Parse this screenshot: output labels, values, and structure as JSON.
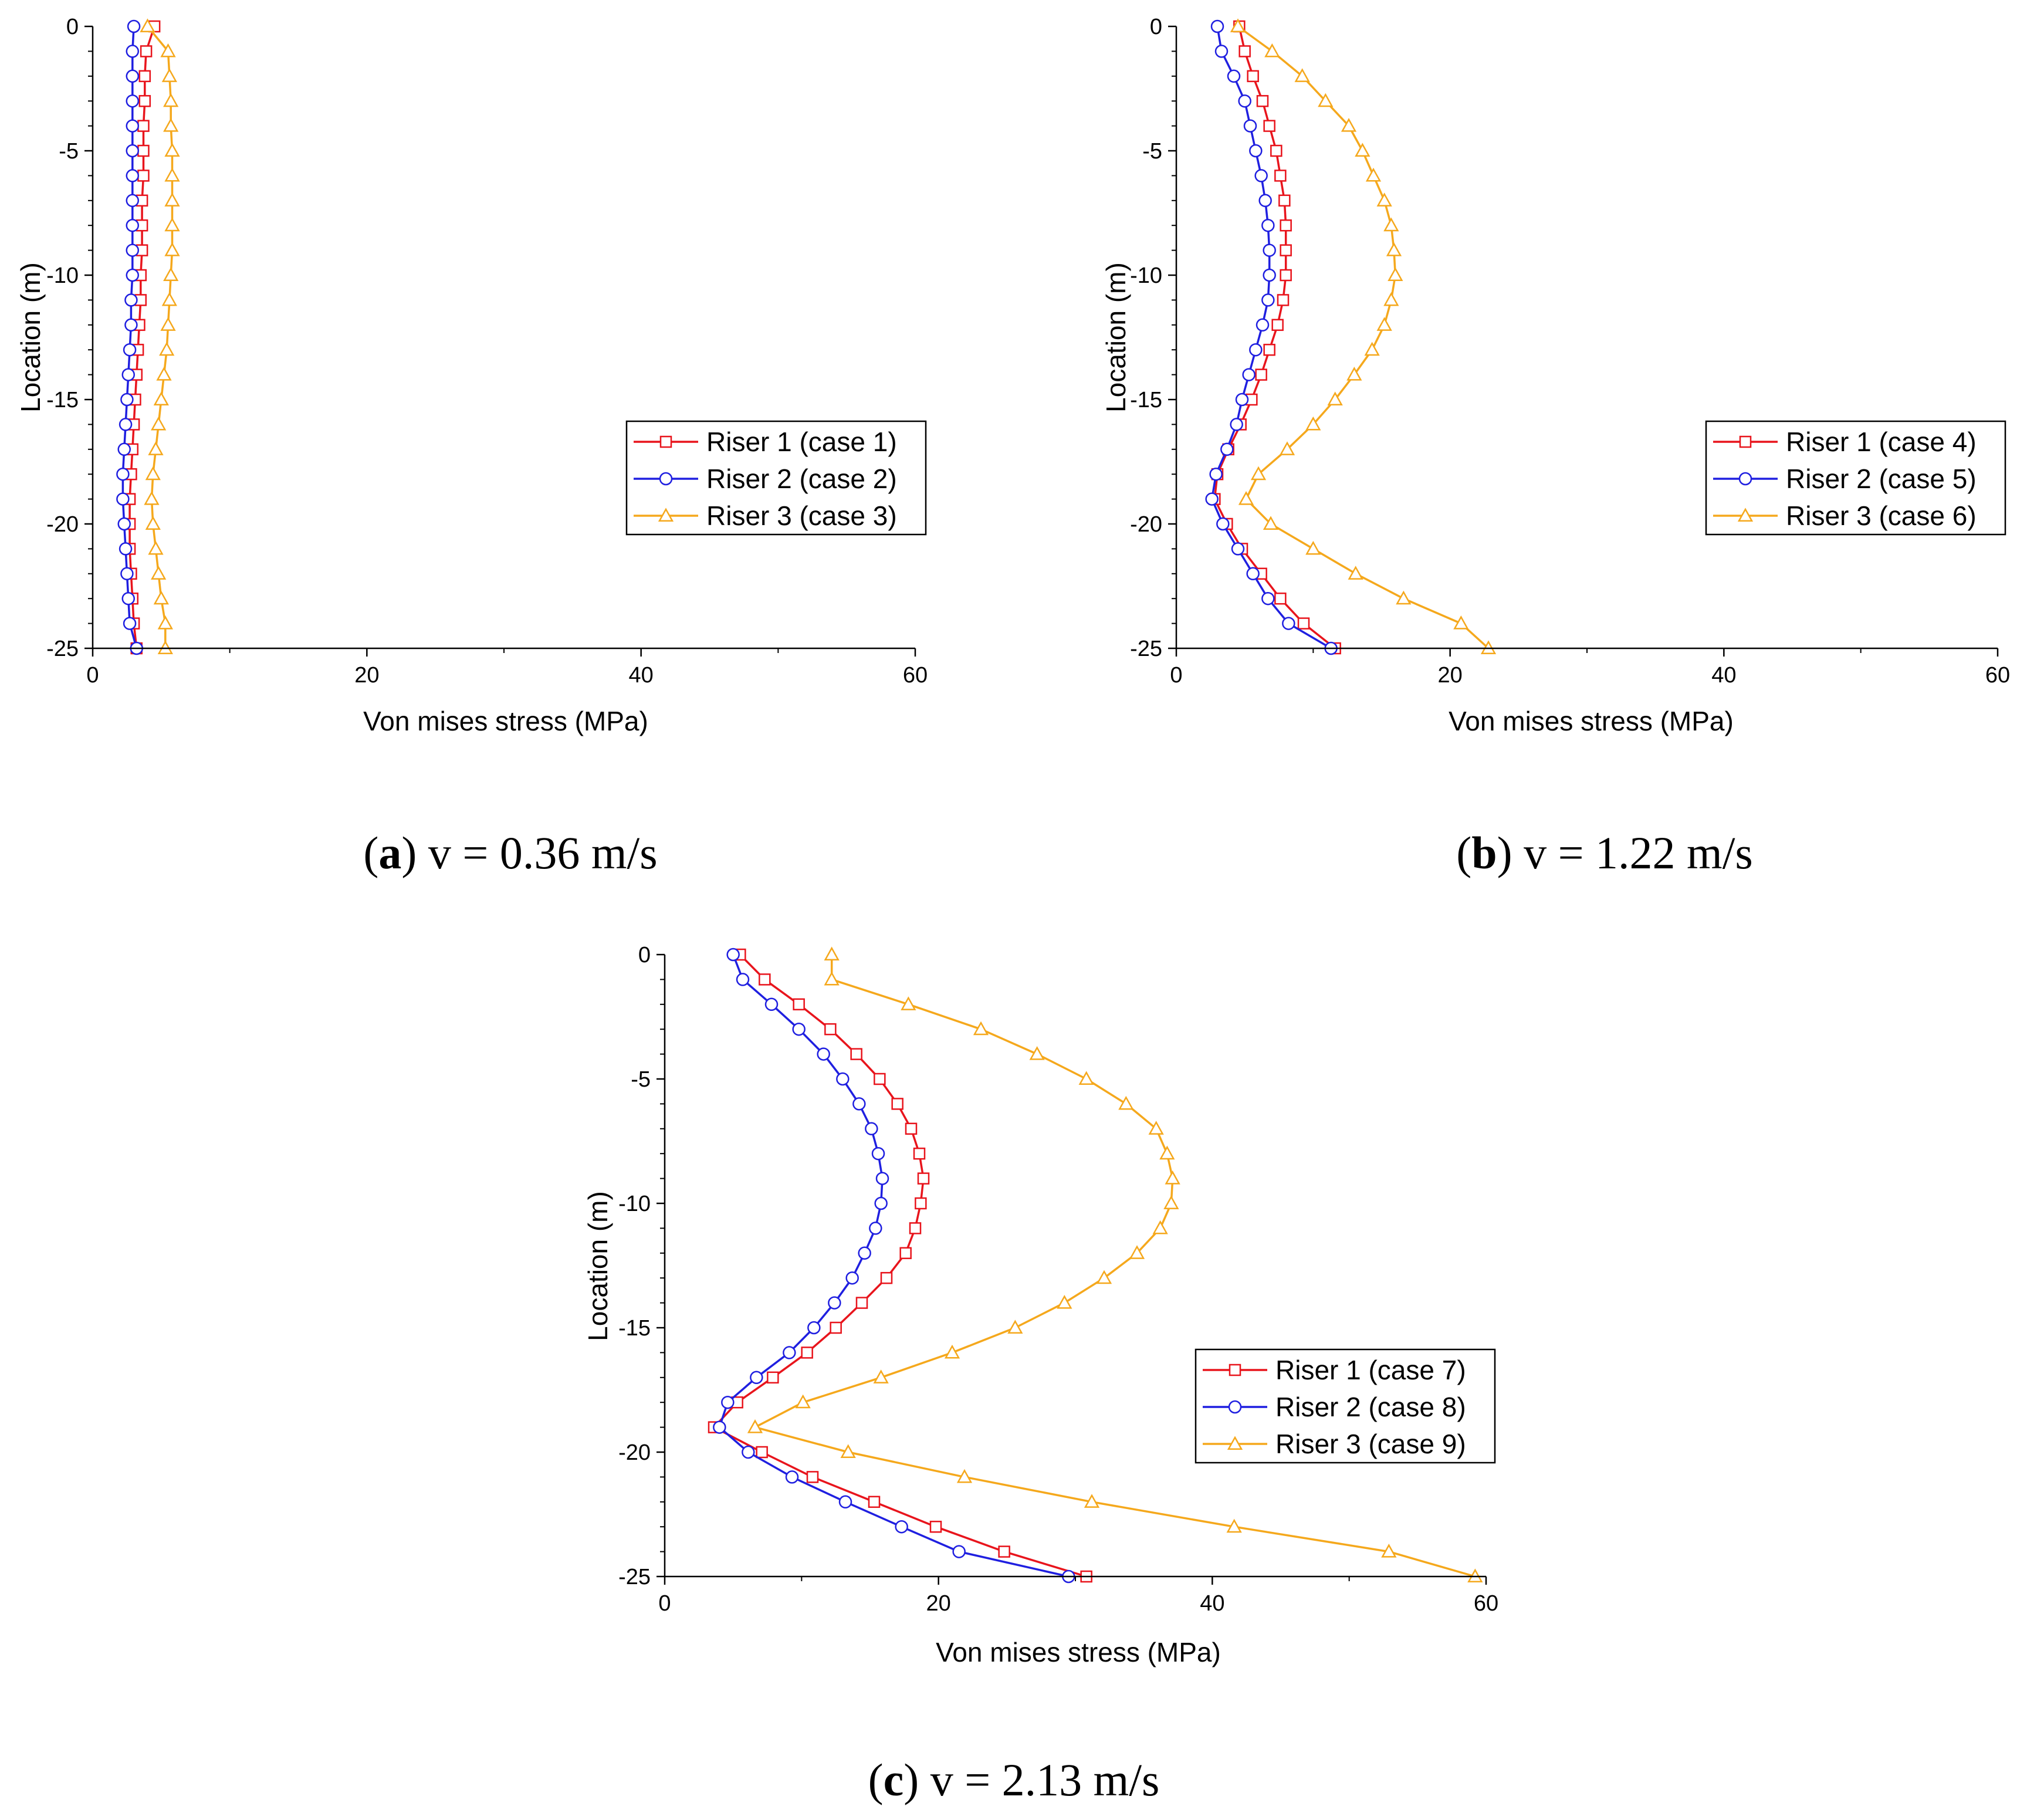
{
  "colors": {
    "red": "#e8141c",
    "blue": "#1f1fe0",
    "orange": "#f5a81c",
    "axis": "#000000"
  },
  "chart_data": [
    {
      "type": "line",
      "panel_letter": "a",
      "caption_rest": ") v = 0.36 m/s",
      "xlabel": "Von mises stress (MPa)",
      "ylabel": "Location (m)",
      "xlim": [
        0,
        60
      ],
      "ylim": [
        -25,
        0
      ],
      "xticks": [
        "0",
        "20",
        "40",
        "60"
      ],
      "yticks": [
        "0",
        "-5",
        "-10",
        "-15",
        "-20",
        "-25"
      ],
      "legend_position": "center-right",
      "y": [
        0,
        -1,
        -2,
        -3,
        -4,
        -5,
        -6,
        -7,
        -8,
        -9,
        -10,
        -11,
        -12,
        -13,
        -14,
        -15,
        -16,
        -17,
        -18,
        -19,
        -20,
        -21,
        -22,
        -23,
        -24,
        -25
      ],
      "series": [
        {
          "name": "Riser 1 (case 1)",
          "color_key": "red",
          "marker": "square",
          "x": [
            4.5,
            3.9,
            3.8,
            3.8,
            3.7,
            3.7,
            3.7,
            3.6,
            3.6,
            3.6,
            3.5,
            3.5,
            3.4,
            3.3,
            3.2,
            3.1,
            3.0,
            2.9,
            2.8,
            2.7,
            2.7,
            2.7,
            2.8,
            2.9,
            3.0,
            3.2
          ]
        },
        {
          "name": "Riser 2 (case 2)",
          "color_key": "blue",
          "marker": "circle",
          "x": [
            3.0,
            2.9,
            2.9,
            2.9,
            2.9,
            2.9,
            2.9,
            2.9,
            2.9,
            2.9,
            2.9,
            2.8,
            2.8,
            2.7,
            2.6,
            2.5,
            2.4,
            2.3,
            2.2,
            2.2,
            2.3,
            2.4,
            2.5,
            2.6,
            2.7,
            3.2
          ]
        },
        {
          "name": "Riser 3 (case 3)",
          "color_key": "orange",
          "marker": "triangle",
          "x": [
            4.0,
            5.5,
            5.6,
            5.7,
            5.7,
            5.8,
            5.8,
            5.8,
            5.8,
            5.8,
            5.7,
            5.6,
            5.5,
            5.4,
            5.2,
            5.0,
            4.8,
            4.6,
            4.4,
            4.3,
            4.4,
            4.6,
            4.8,
            5.0,
            5.3,
            5.3
          ]
        }
      ]
    },
    {
      "type": "line",
      "panel_letter": "b",
      "caption_rest": ") v = 1.22 m/s",
      "xlabel": "Von mises stress (MPa)",
      "ylabel": "Location (m)",
      "xlim": [
        0,
        60
      ],
      "ylim": [
        -25,
        0
      ],
      "xticks": [
        "0",
        "20",
        "40",
        "60"
      ],
      "yticks": [
        "0",
        "-5",
        "-10",
        "-15",
        "-20",
        "-25"
      ],
      "legend_position": "center-right",
      "y": [
        0,
        -1,
        -2,
        -3,
        -4,
        -5,
        -6,
        -7,
        -8,
        -9,
        -10,
        -11,
        -12,
        -13,
        -14,
        -15,
        -16,
        -17,
        -18,
        -19,
        -20,
        -21,
        -22,
        -23,
        -24,
        -25
      ],
      "series": [
        {
          "name": "Riser 1 (case 4)",
          "color_key": "red",
          "marker": "square",
          "x": [
            4.6,
            5.0,
            5.6,
            6.3,
            6.8,
            7.3,
            7.6,
            7.9,
            8.0,
            8.0,
            8.0,
            7.8,
            7.4,
            6.8,
            6.2,
            5.5,
            4.7,
            3.8,
            3.0,
            2.8,
            3.7,
            4.8,
            6.2,
            7.6,
            9.3,
            11.6
          ]
        },
        {
          "name": "Riser 2 (case 5)",
          "color_key": "blue",
          "marker": "circle",
          "x": [
            3.0,
            3.3,
            4.2,
            5.0,
            5.4,
            5.8,
            6.2,
            6.5,
            6.7,
            6.8,
            6.8,
            6.7,
            6.3,
            5.8,
            5.3,
            4.8,
            4.4,
            3.7,
            2.9,
            2.6,
            3.4,
            4.5,
            5.6,
            6.7,
            8.2,
            11.3
          ]
        },
        {
          "name": "Riser 3 (case 6)",
          "color_key": "orange",
          "marker": "triangle",
          "x": [
            4.5,
            7.0,
            9.2,
            10.9,
            12.6,
            13.6,
            14.4,
            15.2,
            15.7,
            15.9,
            16.0,
            15.7,
            15.2,
            14.3,
            13.0,
            11.6,
            10.0,
            8.1,
            6.0,
            5.1,
            6.9,
            10.0,
            13.1,
            16.6,
            20.8,
            22.8
          ]
        }
      ]
    },
    {
      "type": "line",
      "panel_letter": "c",
      "caption_rest": ") v = 2.13 m/s",
      "xlabel": "Von mises stress (MPa)",
      "ylabel": "Location (m)",
      "xlim": [
        0,
        60
      ],
      "ylim": [
        -25,
        0
      ],
      "xticks": [
        "0",
        "20",
        "40",
        "60"
      ],
      "yticks": [
        "0",
        "-5",
        "-10",
        "-15",
        "-20",
        "-25"
      ],
      "legend_position": "lower-right",
      "y": [
        0,
        -1,
        -2,
        -3,
        -4,
        -5,
        -6,
        -7,
        -8,
        -9,
        -10,
        -11,
        -12,
        -13,
        -14,
        -15,
        -16,
        -17,
        -18,
        -19,
        -20,
        -21,
        -22,
        -23,
        -24,
        -25
      ],
      "series": [
        {
          "name": "Riser 1 (case 7)",
          "color_key": "red",
          "marker": "square",
          "x": [
            5.5,
            7.3,
            9.8,
            12.1,
            14.0,
            15.7,
            17.0,
            18.0,
            18.6,
            18.9,
            18.7,
            18.3,
            17.6,
            16.2,
            14.4,
            12.5,
            10.4,
            7.9,
            5.3,
            3.6,
            7.1,
            10.8,
            15.3,
            19.8,
            24.8,
            30.8
          ]
        },
        {
          "name": "Riser 2 (case 8)",
          "color_key": "blue",
          "marker": "circle",
          "x": [
            5.0,
            5.7,
            7.8,
            9.8,
            11.6,
            13.0,
            14.2,
            15.1,
            15.6,
            15.9,
            15.8,
            15.4,
            14.6,
            13.7,
            12.4,
            10.9,
            9.1,
            6.7,
            4.6,
            4.0,
            6.1,
            9.3,
            13.2,
            17.3,
            21.5,
            29.5
          ]
        },
        {
          "name": "Riser 3 (case 9)",
          "color_key": "orange",
          "marker": "triangle",
          "x": [
            12.2,
            12.2,
            17.8,
            23.1,
            27.2,
            30.8,
            33.7,
            35.9,
            36.7,
            37.1,
            37.0,
            36.2,
            34.5,
            32.1,
            29.2,
            25.6,
            21.0,
            15.8,
            10.1,
            6.6,
            13.4,
            21.9,
            31.2,
            41.6,
            52.9,
            59.2
          ]
        }
      ]
    }
  ]
}
